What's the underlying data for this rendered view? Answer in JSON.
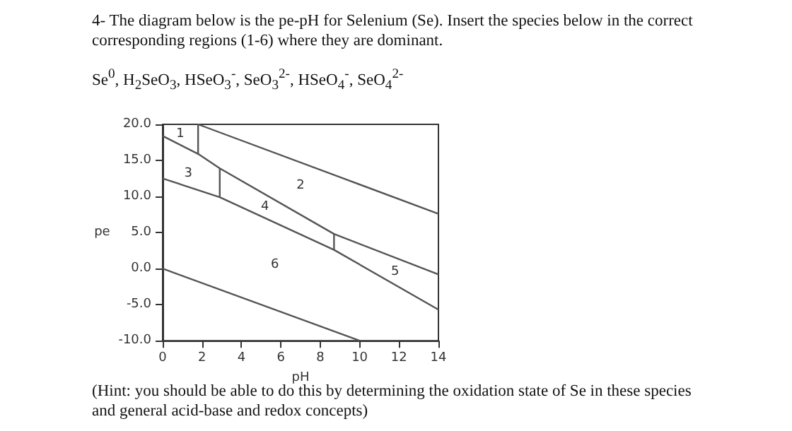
{
  "chart_data": {
    "type": "line",
    "title": "4- The diagram below is the pe-pH for Selenium (Se). Insert the species below in the correct corresponding regions (1-6) where they are dominant.",
    "subtitle": "Se$^{0}$, H$_{2}$SeO$_{3}$, HSeO$_{3}$$^{-}$, SeO$_{3}$$^{2-}$,  HSeO$_{4}$$^{-}$, SeO$_{4}$$^{2-}$",
    "xlabel": "pH",
    "ylabel": "pe",
    "xlim": [
      0,
      14
    ],
    "xticks": [
      0,
      2,
      4,
      6,
      8,
      10,
      12,
      14
    ],
    "ylim": [
      -10,
      20
    ],
    "yticks": [
      {
        "value": -10,
        "label": "-10.0"
      },
      {
        "value": -5,
        "label": "-5.0"
      },
      {
        "value": 0,
        "label": "0.0"
      },
      {
        "value": 5,
        "label": "5.0"
      },
      {
        "value": 10,
        "label": "10.0"
      },
      {
        "value": 15,
        "label": "15.0"
      },
      {
        "value": 20,
        "label": "20.0"
      }
    ],
    "marker": "none",
    "line_style": "solid",
    "series": [
      {
        "color": "#555555",
        "x": [
          14,
          1.8,
          1.8,
          0
        ],
        "values": [
          7.6,
          20,
          15.9,
          18.4
        ]
      },
      {
        "color": "#555555",
        "x": [
          1.8,
          2.9,
          8.7,
          14
        ],
        "values": [
          15.9,
          13.9,
          4.8,
          -0.8
        ]
      },
      {
        "color": "#555555",
        "x": [
          2.9,
          2.9
        ],
        "values": [
          13.9,
          9.9
        ]
      },
      {
        "color": "#555555",
        "x": [
          0,
          2.9,
          8.7,
          14
        ],
        "values": [
          12.5,
          9.9,
          2.6,
          -5.7
        ]
      },
      {
        "color": "#555555",
        "x": [
          8.7,
          8.7
        ],
        "values": [
          2.6,
          4.8
        ]
      },
      {
        "color": "#555555",
        "x": [
          0,
          10
        ],
        "values": [
          0,
          -10
        ]
      }
    ],
    "annotations": [
      "(Hint: you should be able to do this by determining the oxidation state of Se in these species and general acid-base and redox concepts)",
      "1",
      "3",
      "2",
      "4",
      "6",
      "5"
    ]
  }
}
